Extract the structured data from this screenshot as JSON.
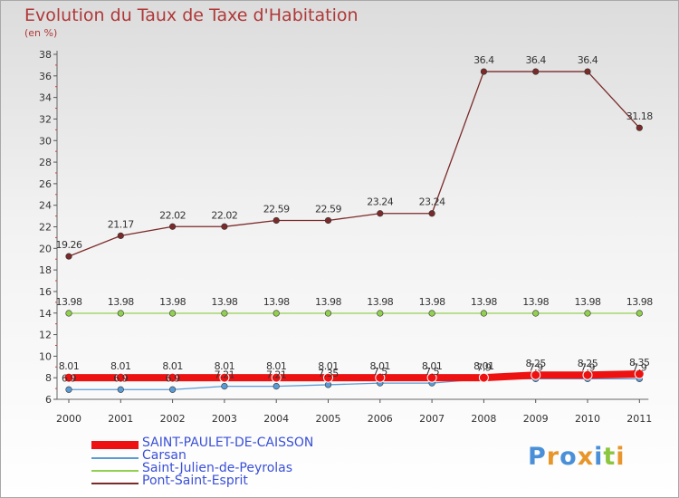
{
  "title": "Evolution du Taux de Taxe d'Habitation",
  "subtitle": "(en %)",
  "logo": {
    "text": "Proxiti",
    "letters": [
      {
        "ch": "P",
        "color": "#4a90d9"
      },
      {
        "ch": "r",
        "color": "#e8962a"
      },
      {
        "ch": "o",
        "color": "#4a90d9"
      },
      {
        "ch": "x",
        "color": "#e8962a"
      },
      {
        "ch": "i",
        "color": "#4a90d9"
      },
      {
        "ch": "t",
        "color": "#8cc63f"
      },
      {
        "ch": "i",
        "color": "#e8962a"
      }
    ]
  },
  "chart_data": {
    "type": "line",
    "title": "Evolution du Taux de Taxe d'Habitation",
    "ylabel": "(en %)",
    "xlabel": "",
    "ylim": [
      6,
      38
    ],
    "yticks": [
      6,
      8,
      10,
      12,
      14,
      16,
      18,
      20,
      22,
      24,
      26,
      28,
      30,
      32,
      34,
      36,
      38
    ],
    "categories": [
      "2000",
      "2001",
      "2002",
      "2003",
      "2004",
      "2005",
      "2006",
      "2007",
      "2008",
      "2009",
      "2010",
      "2011"
    ],
    "grid": false,
    "legend_position": "bottom-left",
    "series": [
      {
        "name": "SAINT-PAULET-DE-CAISSON",
        "color": "#ee1111",
        "values": [
          8.01,
          8.01,
          8.01,
          8.01,
          8.01,
          8.01,
          8.01,
          8.01,
          8.01,
          8.25,
          8.25,
          8.35
        ],
        "labels": [
          "8.01",
          "8.01",
          "8.01",
          "8.01",
          "8.01",
          "8.01",
          "8.01",
          "8.01",
          "8.01",
          "8.25",
          "8.25",
          "8.35"
        ]
      },
      {
        "name": "Carsan",
        "color": "#5b9bd5",
        "values": [
          6.9,
          6.9,
          6.9,
          7.21,
          7.21,
          7.35,
          7.5,
          7.5,
          7.9,
          7.9,
          7.9,
          7.9
        ],
        "labels": [
          "6.9",
          "6.9",
          "6.9",
          "7.21",
          "7.21",
          "7.35",
          "7.5",
          "7.5",
          "7.9",
          "7.9",
          "7.9",
          "7.9"
        ]
      },
      {
        "name": "Saint-Julien-de-Peyrolas",
        "color": "#92d050",
        "values": [
          13.98,
          13.98,
          13.98,
          13.98,
          13.98,
          13.98,
          13.98,
          13.98,
          13.98,
          13.98,
          13.98,
          13.98
        ],
        "labels": [
          "13.98",
          "13.98",
          "13.98",
          "13.98",
          "13.98",
          "13.98",
          "13.98",
          "13.98",
          "13.98",
          "13.98",
          "13.98",
          "13.98"
        ]
      },
      {
        "name": "Pont-Saint-Esprit",
        "color": "#7b2a2a",
        "values": [
          19.26,
          21.17,
          22.02,
          22.02,
          22.59,
          22.59,
          23.24,
          23.24,
          36.4,
          36.4,
          36.4,
          31.18
        ],
        "labels": [
          "19.26",
          "21.17",
          "22.02",
          "22.02",
          "22.59",
          "22.59",
          "23.24",
          "23.24",
          "36.4",
          "36.4",
          "36.4",
          "31.18"
        ]
      }
    ]
  }
}
